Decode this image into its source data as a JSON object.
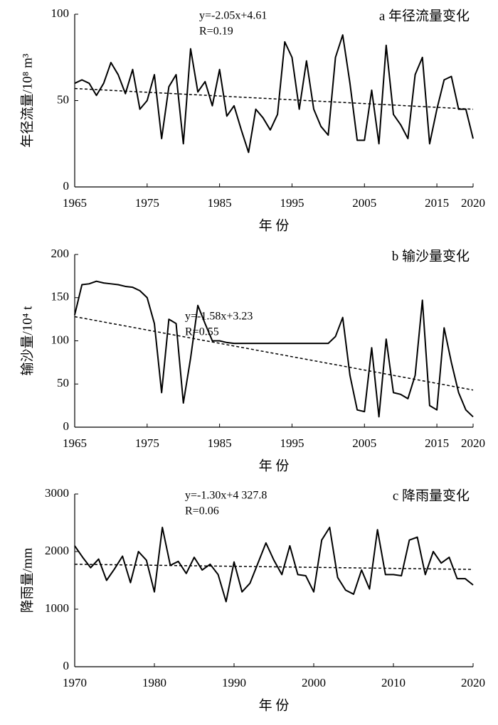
{
  "chart_data": [
    {
      "type": "line",
      "title": "a 年径流量变化",
      "ylabel": "年径流量/10⁸ m³",
      "xlabel": "年 份",
      "annotations": [
        "y=-2.05x+4.61",
        "R=0.19"
      ],
      "x": [
        1965,
        1966,
        1967,
        1968,
        1969,
        1970,
        1971,
        1972,
        1973,
        1974,
        1975,
        1976,
        1977,
        1978,
        1979,
        1980,
        1981,
        1982,
        1983,
        1984,
        1985,
        1986,
        1987,
        1988,
        1989,
        1990,
        1991,
        1992,
        1993,
        1994,
        1995,
        1996,
        1997,
        1998,
        1999,
        2000,
        2001,
        2002,
        2003,
        2004,
        2005,
        2006,
        2007,
        2008,
        2009,
        2010,
        2011,
        2012,
        2013,
        2014,
        2015,
        2016,
        2017,
        2018,
        2019,
        2020
      ],
      "values": [
        60,
        62,
        60,
        53,
        60,
        72,
        65,
        54,
        68,
        45,
        50,
        65,
        28,
        58,
        65,
        25,
        80,
        55,
        61,
        47,
        68,
        41,
        47,
        33,
        20,
        45,
        40,
        33,
        42,
        84,
        75,
        45,
        73,
        45,
        35,
        30,
        75,
        88,
        60,
        27,
        27,
        56,
        25,
        82,
        42,
        36,
        28,
        65,
        75,
        25,
        45,
        62,
        64,
        45,
        45,
        28
      ],
      "color": "#000000",
      "trend": {
        "x": [
          1965,
          2020
        ],
        "values": [
          57,
          45
        ]
      },
      "xlim": [
        1965,
        2020
      ],
      "xticks": [
        1965,
        1975,
        1985,
        1995,
        2005,
        2015,
        2020
      ],
      "ylim": [
        0,
        100
      ],
      "yticks": [
        0,
        50,
        100
      ]
    },
    {
      "type": "line",
      "title": "b 输沙量变化",
      "ylabel": "输沙量/10⁴ t",
      "xlabel": "年 份",
      "annotations": [
        "y=-1.58x+3.23",
        "R=0.55"
      ],
      "x": [
        1965,
        1966,
        1967,
        1968,
        1969,
        1970,
        1971,
        1972,
        1973,
        1974,
        1975,
        1976,
        1977,
        1978,
        1979,
        1980,
        1981,
        1982,
        1983,
        1984,
        1985,
        1986,
        1987,
        1988,
        1989,
        1990,
        1991,
        1992,
        1993,
        1994,
        1995,
        1996,
        1997,
        1998,
        1999,
        2000,
        2001,
        2002,
        2003,
        2004,
        2005,
        2006,
        2007,
        2008,
        2009,
        2010,
        2011,
        2012,
        2013,
        2014,
        2015,
        2016,
        2017,
        2018,
        2019,
        2020
      ],
      "values": [
        130,
        165,
        166,
        169,
        167,
        166,
        165,
        163,
        162,
        158,
        150,
        120,
        40,
        125,
        120,
        28,
        80,
        141,
        120,
        100,
        100,
        98,
        97,
        97,
        97,
        97,
        97,
        97,
        97,
        97,
        97,
        97,
        97,
        97,
        97,
        97,
        105,
        127,
        60,
        20,
        18,
        92,
        12,
        102,
        40,
        38,
        33,
        60,
        147,
        25,
        20,
        115,
        75,
        40,
        20,
        12
      ],
      "color": "#000000",
      "trend": {
        "x": [
          1965,
          2020
        ],
        "values": [
          128,
          43
        ]
      },
      "xlim": [
        1965,
        2020
      ],
      "xticks": [
        1965,
        1975,
        1985,
        1995,
        2005,
        2015,
        2020
      ],
      "ylim": [
        0,
        200
      ],
      "yticks": [
        0,
        50,
        100,
        150,
        200
      ]
    },
    {
      "type": "line",
      "title": "c 降雨量变化",
      "ylabel": "降雨量/mm",
      "xlabel": "年 份",
      "annotations": [
        "y=-1.30x+4 327.8",
        "R=0.06"
      ],
      "x": [
        1970,
        1971,
        1972,
        1973,
        1974,
        1975,
        1976,
        1977,
        1978,
        1979,
        1980,
        1981,
        1982,
        1983,
        1984,
        1985,
        1986,
        1987,
        1988,
        1989,
        1990,
        1991,
        1992,
        1993,
        1994,
        1995,
        1996,
        1997,
        1998,
        1999,
        2000,
        2001,
        2002,
        2003,
        2004,
        2005,
        2006,
        2007,
        2008,
        2009,
        2010,
        2011,
        2012,
        2013,
        2014,
        2015,
        2016,
        2017,
        2018,
        2019,
        2020
      ],
      "values": [
        2100,
        1900,
        1720,
        1870,
        1500,
        1700,
        1920,
        1460,
        2000,
        1850,
        1300,
        2420,
        1760,
        1830,
        1620,
        1900,
        1680,
        1780,
        1600,
        1130,
        1820,
        1300,
        1450,
        1800,
        2150,
        1850,
        1600,
        2100,
        1600,
        1580,
        1300,
        2200,
        2420,
        1550,
        1330,
        1260,
        1680,
        1350,
        2380,
        1600,
        1600,
        1580,
        2200,
        2250,
        1600,
        2000,
        1800,
        1900,
        1530,
        1530,
        1420
      ],
      "color": "#000000",
      "trend": {
        "x": [
          1970,
          2020
        ],
        "values": [
          1780,
          1690
        ]
      },
      "xlim": [
        1970,
        2020
      ],
      "xticks": [
        1970,
        1980,
        1990,
        2000,
        2010,
        2020
      ],
      "ylim": [
        0,
        3000
      ],
      "yticks": [
        0,
        1000,
        2000,
        3000
      ]
    }
  ]
}
